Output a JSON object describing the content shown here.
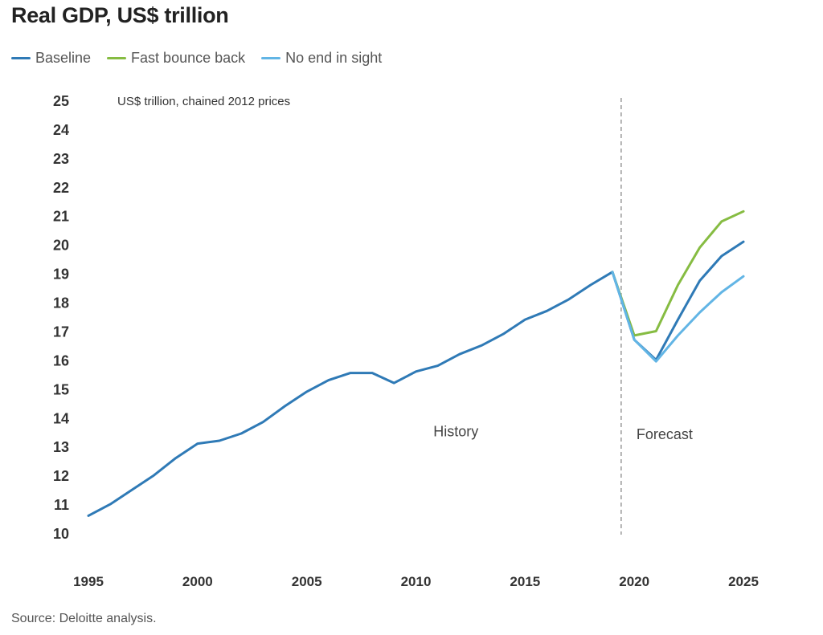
{
  "title": "Real GDP, US$ trillion",
  "source": "Source: Deloitte analysis.",
  "chart_data": {
    "type": "line",
    "title": "Real GDP, US$ trillion",
    "unit_label": "US$ trillion, chained 2012 prices",
    "xlabel": "",
    "ylabel": "",
    "xlim": [
      1995,
      2025
    ],
    "ylim": [
      10,
      25
    ],
    "x_ticks": [
      1995,
      2000,
      2005,
      2010,
      2015,
      2020,
      2025
    ],
    "y_ticks": [
      10,
      11,
      12,
      13,
      14,
      15,
      16,
      17,
      18,
      19,
      20,
      21,
      22,
      23,
      24,
      25
    ],
    "grid": false,
    "legend_position": "top-left",
    "forecast_divider_x": 2019.4,
    "region_labels": {
      "history": "History",
      "forecast": "Forecast"
    },
    "history": {
      "x": [
        1995,
        1996,
        1997,
        1998,
        1999,
        2000,
        2001,
        2002,
        2003,
        2004,
        2005,
        2006,
        2007,
        2008,
        2009,
        2010,
        2011,
        2012,
        2013,
        2014,
        2015,
        2016,
        2017,
        2018,
        2019
      ],
      "values": [
        10.6,
        11.0,
        11.5,
        12.0,
        12.6,
        13.1,
        13.2,
        13.45,
        13.85,
        14.4,
        14.9,
        15.3,
        15.55,
        15.55,
        15.2,
        15.6,
        15.8,
        16.2,
        16.5,
        16.9,
        17.4,
        17.7,
        18.1,
        18.6,
        19.05
      ]
    },
    "series": [
      {
        "name": "Baseline",
        "color": "#2f7ab6",
        "x": [
          2019,
          2020,
          2021,
          2022,
          2023,
          2024,
          2025
        ],
        "values": [
          19.05,
          16.7,
          16.0,
          17.4,
          18.75,
          19.6,
          20.1
        ]
      },
      {
        "name": "Fast bounce back",
        "color": "#86bc42",
        "x": [
          2019,
          2020,
          2021,
          2022,
          2023,
          2024,
          2025
        ],
        "values": [
          19.05,
          16.85,
          17.0,
          18.6,
          19.9,
          20.8,
          21.15
        ]
      },
      {
        "name": "No end in sight",
        "color": "#62b5e5",
        "x": [
          2019,
          2020,
          2021,
          2022,
          2023,
          2024,
          2025
        ],
        "values": [
          19.05,
          16.7,
          15.95,
          16.85,
          17.65,
          18.35,
          18.9
        ]
      }
    ]
  }
}
